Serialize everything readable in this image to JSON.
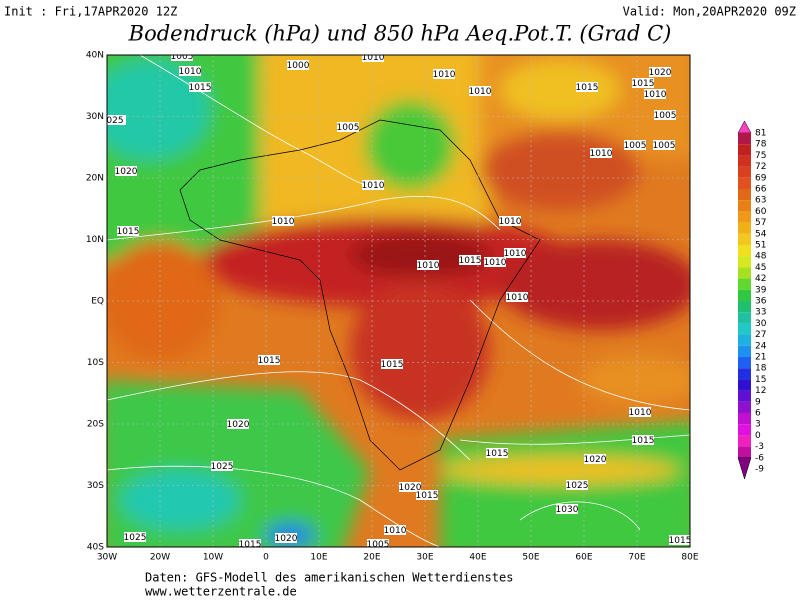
{
  "header": {
    "init": "Init : Fri,17APR2020 12Z",
    "valid": "Valid: Mon,20APR2020 09Z",
    "title": "Bodendruck (hPa) und 850 hPa Aeq.Pot.T. (Grad C)"
  },
  "map": {
    "lat_labels": [
      "40N",
      "30N",
      "20N",
      "10N",
      "EQ",
      "10S",
      "20S",
      "30S",
      "40S"
    ],
    "lon_labels": [
      "30W",
      "20W",
      "10W",
      "0",
      "10E",
      "20E",
      "30E",
      "40E",
      "50E",
      "60E",
      "70E",
      "80E"
    ],
    "isobar_labels": [
      "1005",
      "1010",
      "1015",
      "1000",
      "1010",
      "1010",
      "1010",
      "1015",
      "1020",
      "1015",
      "1010",
      "1005",
      "1010",
      "1005",
      "1005",
      "1005",
      "025",
      "1020",
      "1010",
      "1010",
      "1015",
      "1010",
      "1010",
      "1015",
      "1010",
      "1010",
      "1010",
      "1015",
      "1015",
      "1010",
      "1020",
      "1015",
      "1015",
      "1020",
      "1025",
      "1025",
      "1020",
      "1015",
      "1030",
      "1010",
      "1025",
      "1020",
      "1015",
      "1005",
      "1015"
    ]
  },
  "colorbar": {
    "ticks": [
      81,
      78,
      75,
      72,
      69,
      66,
      63,
      60,
      57,
      54,
      51,
      48,
      45,
      42,
      39,
      36,
      33,
      30,
      27,
      24,
      21,
      18,
      15,
      12,
      9,
      6,
      3,
      0,
      -3,
      -6,
      -9
    ],
    "colors": [
      "#ff40c0",
      "#b01848",
      "#c02020",
      "#d03020",
      "#d84020",
      "#e05020",
      "#e06818",
      "#e88018",
      "#f09818",
      "#f0b018",
      "#f0c820",
      "#f0e020",
      "#d8e820",
      "#a8e020",
      "#60d830",
      "#30c840",
      "#20c070",
      "#20c0a0",
      "#20c8c8",
      "#20b0e0",
      "#2090f0",
      "#2060f0",
      "#2030e0",
      "#3010d0",
      "#6010d0",
      "#9010d0",
      "#c010d0",
      "#e010e0",
      "#f020c0",
      "#c010a0",
      "#800080"
    ]
  },
  "footer": {
    "line1": "Daten: GFS-Modell des amerikanischen Wetterdienstes",
    "line2": "www.wetterzentrale.de"
  }
}
